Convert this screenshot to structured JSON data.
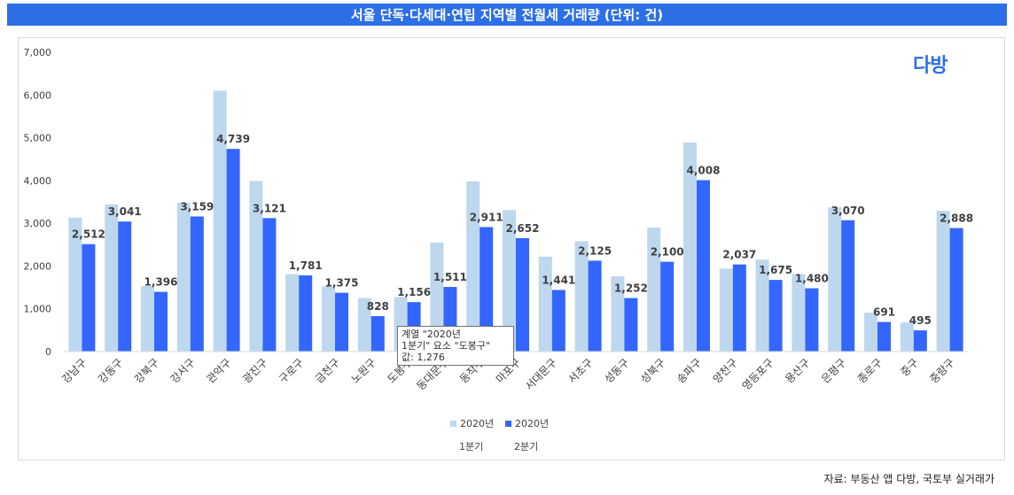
{
  "title": "서울 단독·다세대·연립 지역별 전월세 거래량 (단위: 건)",
  "logo_text": "다방",
  "source": "자료: 부동산 앱 다방, 국토부 실거래가",
  "colors": {
    "title_bg": "#2d6fe6",
    "series1": "#bdd7ee",
    "series2": "#3366ff"
  },
  "tooltip": {
    "line1": "계열 \"2020년",
    "line2": "1분기\" 요소 \"도봉구\"",
    "line3": "값: 1,276"
  },
  "chart_data": {
    "type": "bar",
    "categories": [
      "강남구",
      "강동구",
      "강북구",
      "강서구",
      "관악구",
      "광진구",
      "구로구",
      "금천구",
      "노원구",
      "도봉구",
      "동대문구",
      "동작구",
      "마포구",
      "서대문구",
      "서초구",
      "성동구",
      "성북구",
      "송파구",
      "양천구",
      "영등포구",
      "용산구",
      "은평구",
      "종로구",
      "중구",
      "중랑구"
    ],
    "series": [
      {
        "name": "2020년 1분기",
        "legend_line1": "2020년",
        "legend_line2": "1분기",
        "values": [
          3130,
          3440,
          1530,
          3480,
          6100,
          3990,
          1810,
          1520,
          1250,
          1276,
          2550,
          3980,
          3310,
          2220,
          2580,
          1760,
          2900,
          4890,
          1940,
          2150,
          1810,
          3370,
          910,
          680,
          3290
        ]
      },
      {
        "name": "2020년 2분기",
        "legend_line1": "2020년",
        "legend_line2": "2분기",
        "values": [
          2512,
          3041,
          1396,
          3159,
          4739,
          3121,
          1781,
          1375,
          828,
          1156,
          1511,
          2911,
          2652,
          1441,
          2125,
          1252,
          2100,
          4008,
          2037,
          1675,
          1480,
          3070,
          691,
          495,
          2888
        ]
      }
    ],
    "data_labels": [
      "2,512",
      "3,041",
      "1,396",
      "3,159",
      "4,739",
      "3,121",
      "1,781",
      "1,375",
      "828",
      "1,156",
      "1,511",
      "2,911",
      "2,652",
      "1,441",
      "2,125",
      "1,252",
      "2,100",
      "4,008",
      "2,037",
      "1,675",
      "1,480",
      "3,070",
      "691",
      "495",
      "2,888"
    ],
    "y_ticks": [
      "0",
      "1,000",
      "2,000",
      "3,000",
      "4,000",
      "5,000",
      "6,000",
      "7,000"
    ],
    "ylim": [
      0,
      7000
    ],
    "grid": false,
    "legend": "bottom-center"
  }
}
